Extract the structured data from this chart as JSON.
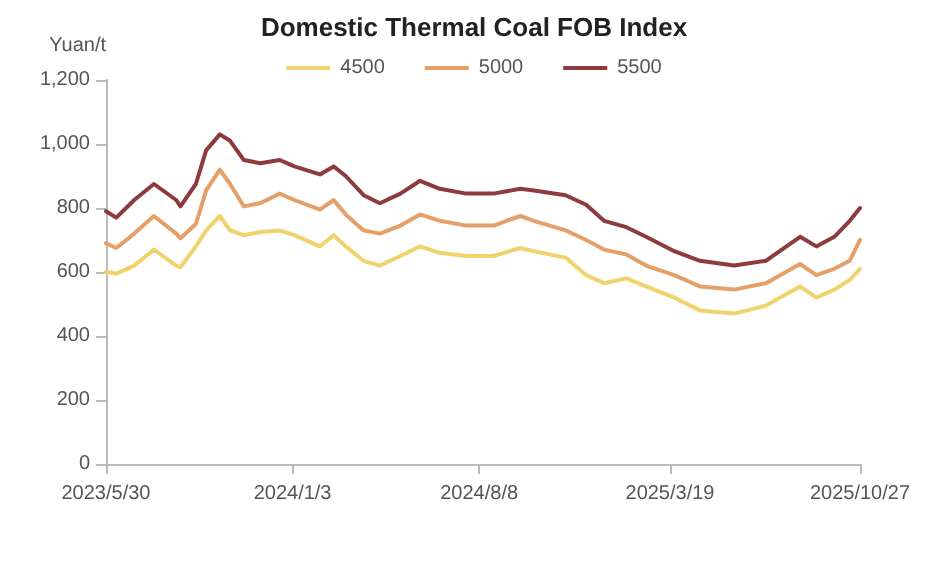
{
  "chart_data": {
    "type": "line",
    "title": "Domestic Thermal Coal FOB Index",
    "ylabel": "Yuan/t",
    "x": [
      "2023-05-30",
      "2023-06-11",
      "2023-07-02",
      "2023-07-25",
      "2023-08-20",
      "2023-08-25",
      "2023-09-12",
      "2023-09-24",
      "2023-10-10",
      "2023-10-22",
      "2023-11-07",
      "2023-11-26",
      "2023-12-19",
      "2024-01-05",
      "2024-02-04",
      "2024-02-20",
      "2024-03-05",
      "2024-03-26",
      "2024-04-14",
      "2024-05-08",
      "2024-05-31",
      "2024-06-23",
      "2024-07-24",
      "2024-08-25",
      "2024-09-25",
      "2024-10-11",
      "2024-11-17",
      "2024-12-11",
      "2025-01-01",
      "2025-01-27",
      "2025-02-19",
      "2025-03-24",
      "2025-04-23",
      "2025-06-02",
      "2025-07-09",
      "2025-08-18",
      "2025-09-06",
      "2025-09-27",
      "2025-10-15",
      "2025-10-27"
    ],
    "series": [
      {
        "name": "4500",
        "color": "#f0d36c",
        "values": [
          600,
          595,
          620,
          670,
          620,
          615,
          680,
          730,
          775,
          730,
          715,
          725,
          730,
          715,
          680,
          715,
          680,
          635,
          620,
          650,
          680,
          660,
          650,
          650,
          675,
          665,
          645,
          590,
          565,
          580,
          555,
          520,
          480,
          470,
          495,
          555,
          520,
          545,
          575,
          610
        ]
      },
      {
        "name": "5000",
        "color": "#e5a06a",
        "values": [
          690,
          675,
          720,
          775,
          720,
          705,
          750,
          855,
          920,
          875,
          805,
          815,
          845,
          825,
          795,
          825,
          780,
          730,
          720,
          745,
          780,
          760,
          745,
          745,
          775,
          760,
          730,
          700,
          670,
          655,
          620,
          590,
          555,
          545,
          565,
          625,
          590,
          610,
          635,
          700
        ]
      },
      {
        "name": "5500",
        "color": "#8e3b3e",
        "values": [
          790,
          770,
          825,
          875,
          825,
          805,
          875,
          980,
          1030,
          1010,
          950,
          940,
          950,
          930,
          905,
          930,
          900,
          840,
          815,
          845,
          885,
          860,
          845,
          845,
          860,
          855,
          840,
          810,
          760,
          740,
          710,
          665,
          635,
          620,
          635,
          710,
          680,
          710,
          760,
          800
        ]
      }
    ],
    "xlim": [
      "2023-05-30",
      "2025-10-27"
    ],
    "xticks": [
      {
        "value": "2023-05-30",
        "label": "2023/5/30"
      },
      {
        "value": "2024-01-03",
        "label": "2024/1/3"
      },
      {
        "value": "2024-08-08",
        "label": "2024/8/8"
      },
      {
        "value": "2025-03-19",
        "label": "2025/3/19"
      },
      {
        "value": "2025-10-27",
        "label": "2025/10/27"
      }
    ],
    "ylim": [
      0,
      1200
    ],
    "yticks": [
      {
        "value": 0,
        "label": "0"
      },
      {
        "value": 200,
        "label": "200"
      },
      {
        "value": 400,
        "label": "400"
      },
      {
        "value": 600,
        "label": "600"
      },
      {
        "value": 800,
        "label": "800"
      },
      {
        "value": 1000,
        "label": "1,000"
      },
      {
        "value": 1200,
        "label": "1,200"
      }
    ],
    "grid": false,
    "legend": "top",
    "marker": "none",
    "line_style": "solid"
  }
}
